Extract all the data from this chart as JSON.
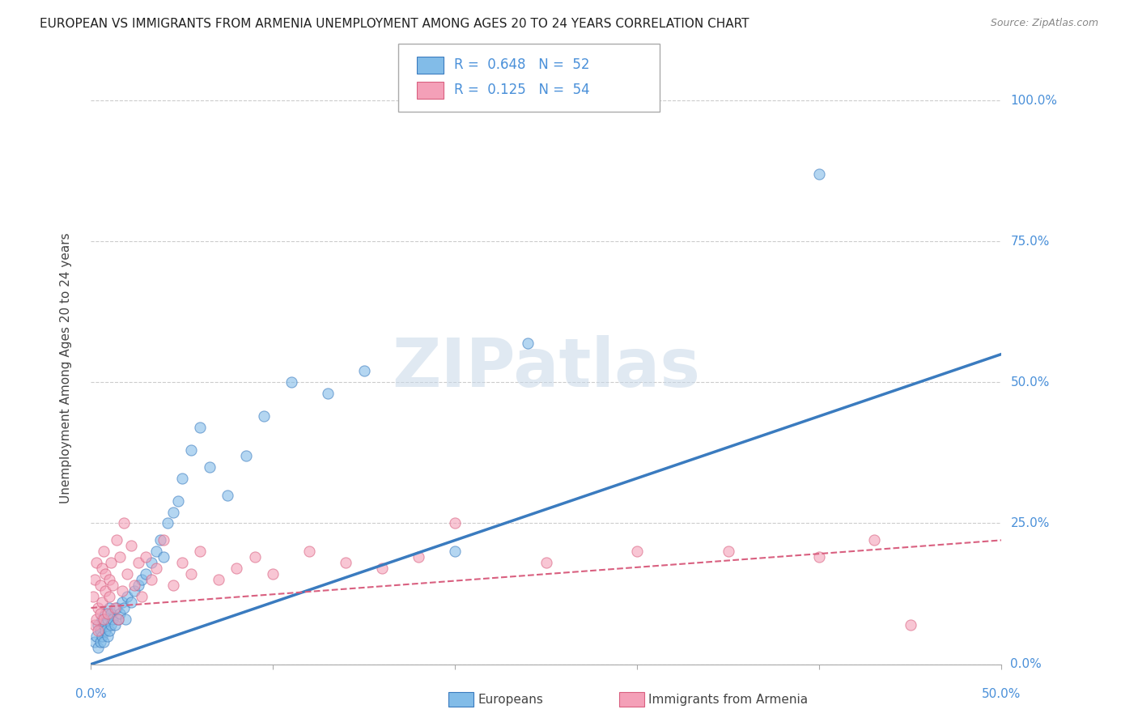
{
  "title": "EUROPEAN VS IMMIGRANTS FROM ARMENIA UNEMPLOYMENT AMONG AGES 20 TO 24 YEARS CORRELATION CHART",
  "source": "Source: ZipAtlas.com",
  "ylabel": "Unemployment Among Ages 20 to 24 years",
  "ytick_labels": [
    "0.0%",
    "25.0%",
    "50.0%",
    "75.0%",
    "100.0%"
  ],
  "ytick_values": [
    0.0,
    0.25,
    0.5,
    0.75,
    1.0
  ],
  "xlim": [
    0.0,
    0.5
  ],
  "ylim": [
    0.0,
    1.05
  ],
  "legend_blue_R": "0.648",
  "legend_blue_N": "52",
  "legend_pink_R": "0.125",
  "legend_pink_N": "54",
  "blue_color": "#82bce8",
  "pink_color": "#f4a0b8",
  "blue_line_color": "#3a7bbf",
  "pink_line_color": "#d96080",
  "tick_color_blue": "#4a90d9",
  "grid_color": "#cccccc",
  "watermark_color": "#c8d8e8",
  "europeans_x": [
    0.002,
    0.003,
    0.004,
    0.004,
    0.005,
    0.005,
    0.006,
    0.006,
    0.007,
    0.007,
    0.008,
    0.008,
    0.009,
    0.009,
    0.01,
    0.01,
    0.011,
    0.011,
    0.012,
    0.013,
    0.014,
    0.015,
    0.016,
    0.017,
    0.018,
    0.019,
    0.02,
    0.022,
    0.024,
    0.026,
    0.028,
    0.03,
    0.033,
    0.036,
    0.038,
    0.04,
    0.042,
    0.045,
    0.048,
    0.05,
    0.055,
    0.06,
    0.065,
    0.075,
    0.085,
    0.095,
    0.11,
    0.13,
    0.15,
    0.2,
    0.24,
    0.4
  ],
  "europeans_y": [
    0.04,
    0.05,
    0.03,
    0.07,
    0.06,
    0.04,
    0.08,
    0.05,
    0.07,
    0.04,
    0.06,
    0.09,
    0.05,
    0.08,
    0.1,
    0.06,
    0.07,
    0.09,
    0.08,
    0.07,
    0.1,
    0.08,
    0.09,
    0.11,
    0.1,
    0.08,
    0.12,
    0.11,
    0.13,
    0.14,
    0.15,
    0.16,
    0.18,
    0.2,
    0.22,
    0.19,
    0.25,
    0.27,
    0.29,
    0.33,
    0.38,
    0.42,
    0.35,
    0.3,
    0.37,
    0.44,
    0.5,
    0.48,
    0.52,
    0.2,
    0.57,
    0.87
  ],
  "armenia_x": [
    0.001,
    0.002,
    0.002,
    0.003,
    0.003,
    0.004,
    0.004,
    0.005,
    0.005,
    0.006,
    0.006,
    0.007,
    0.007,
    0.008,
    0.008,
    0.009,
    0.01,
    0.01,
    0.011,
    0.012,
    0.013,
    0.014,
    0.015,
    0.016,
    0.017,
    0.018,
    0.02,
    0.022,
    0.024,
    0.026,
    0.028,
    0.03,
    0.033,
    0.036,
    0.04,
    0.045,
    0.05,
    0.055,
    0.06,
    0.07,
    0.08,
    0.09,
    0.1,
    0.12,
    0.14,
    0.16,
    0.18,
    0.2,
    0.25,
    0.3,
    0.35,
    0.4,
    0.43,
    0.45
  ],
  "armenia_y": [
    0.12,
    0.07,
    0.15,
    0.08,
    0.18,
    0.1,
    0.06,
    0.14,
    0.09,
    0.17,
    0.11,
    0.08,
    0.2,
    0.13,
    0.16,
    0.09,
    0.15,
    0.12,
    0.18,
    0.14,
    0.1,
    0.22,
    0.08,
    0.19,
    0.13,
    0.25,
    0.16,
    0.21,
    0.14,
    0.18,
    0.12,
    0.19,
    0.15,
    0.17,
    0.22,
    0.14,
    0.18,
    0.16,
    0.2,
    0.15,
    0.17,
    0.19,
    0.16,
    0.2,
    0.18,
    0.17,
    0.19,
    0.25,
    0.18,
    0.2,
    0.2,
    0.19,
    0.22,
    0.07
  ],
  "blue_regression": [
    0.0,
    0.5,
    0.0,
    0.55
  ],
  "pink_regression": [
    0.0,
    0.5,
    0.1,
    0.22
  ]
}
